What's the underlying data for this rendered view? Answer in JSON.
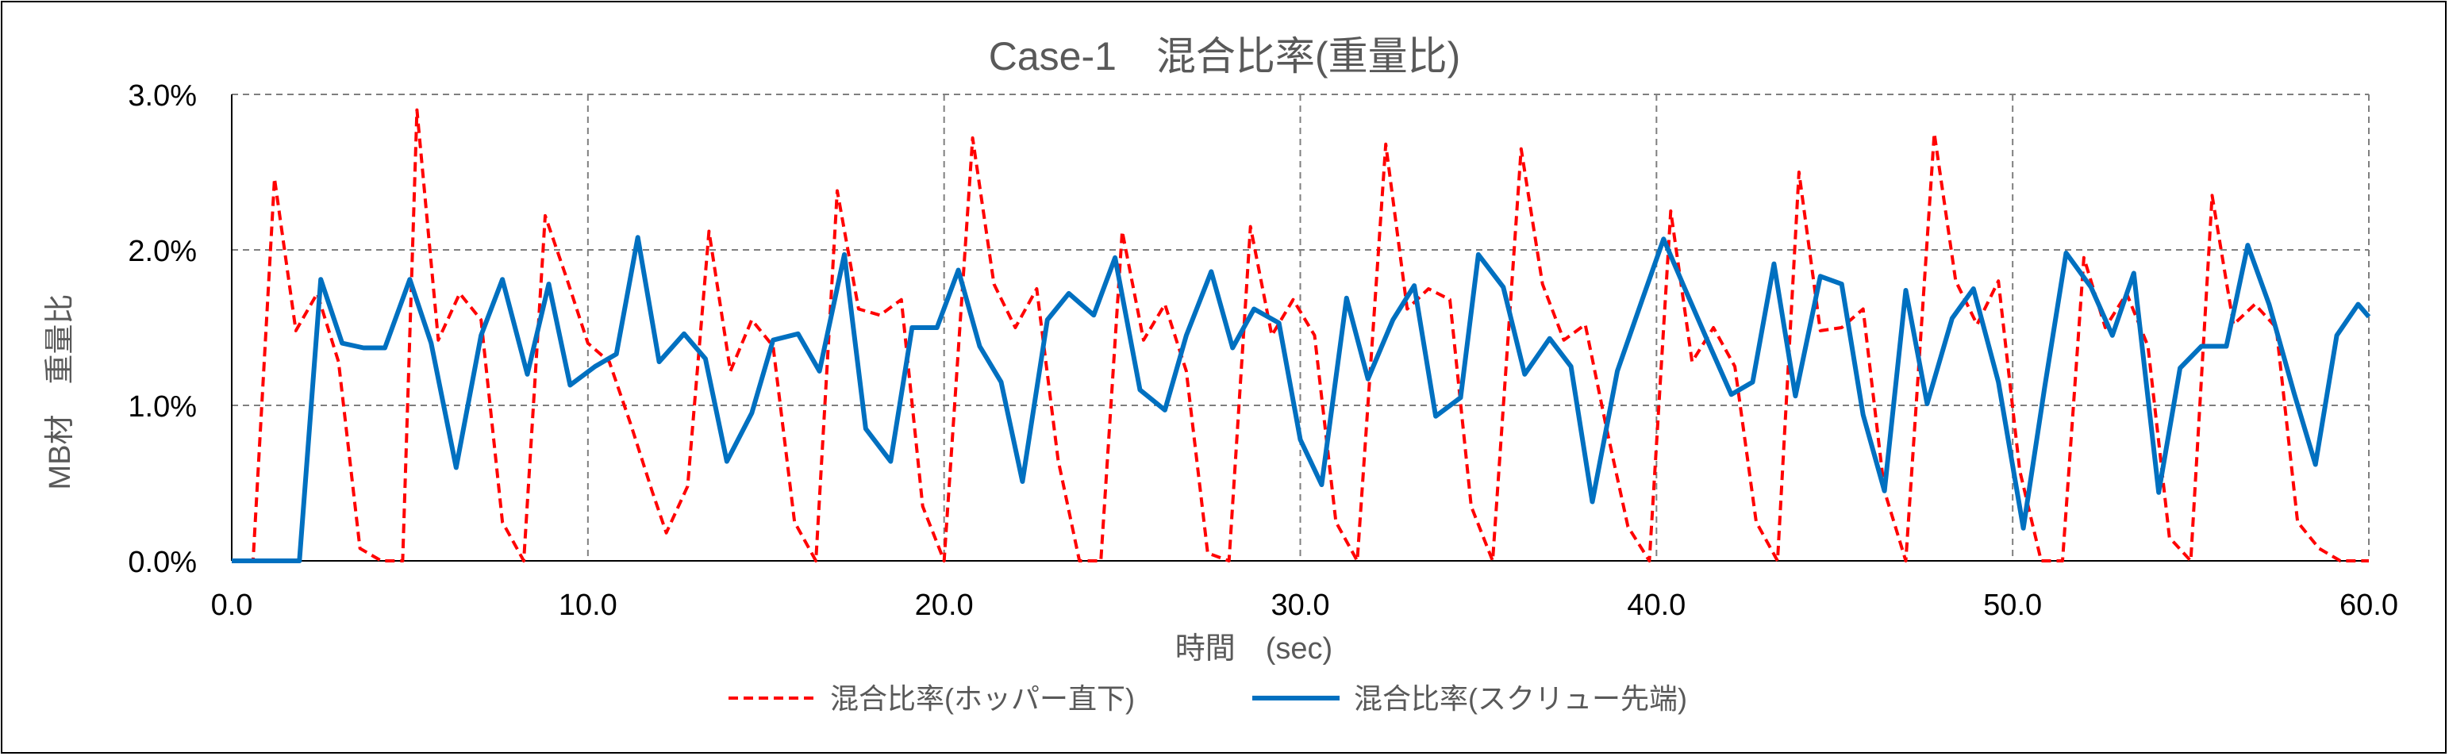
{
  "chart_data": {
    "type": "line",
    "title": "Case-1　混合比率(重量比)",
    "xlabel": "時間　(sec)",
    "ylabel": "MB材　重量比",
    "xlim": [
      0,
      60
    ],
    "ylim": [
      0,
      0.03
    ],
    "x_ticks": [
      "0.0",
      "10.0",
      "20.0",
      "30.0",
      "40.0",
      "50.0",
      "60.0"
    ],
    "y_ticks": [
      "0.0%",
      "1.0%",
      "2.0%",
      "3.0%"
    ],
    "grid": true,
    "legend_position": "bottom",
    "series": [
      {
        "name": "混合比率(ホッパー直下)",
        "color": "#ff0000",
        "style": "dashed",
        "points": [
          [
            0.0,
            0.0
          ],
          [
            0.6,
            0.0
          ],
          [
            1.2,
            0.0246
          ],
          [
            1.8,
            0.0148
          ],
          [
            2.4,
            0.0172
          ],
          [
            3.0,
            0.0128
          ],
          [
            3.6,
            0.0008
          ],
          [
            4.2,
            0.0
          ],
          [
            4.8,
            0.0
          ],
          [
            5.2,
            0.029
          ],
          [
            5.8,
            0.0142
          ],
          [
            6.4,
            0.0172
          ],
          [
            7.0,
            0.0155
          ],
          [
            7.6,
            0.0025
          ],
          [
            8.2,
            0.0
          ],
          [
            8.8,
            0.0222
          ],
          [
            9.4,
            0.0182
          ],
          [
            10.0,
            0.014
          ],
          [
            10.6,
            0.0128
          ],
          [
            11.2,
            0.0088
          ],
          [
            11.8,
            0.0045
          ],
          [
            12.2,
            0.0018
          ],
          [
            12.8,
            0.0048
          ],
          [
            13.4,
            0.0212
          ],
          [
            14.0,
            0.0122
          ],
          [
            14.6,
            0.0155
          ],
          [
            15.2,
            0.0138
          ],
          [
            15.8,
            0.0025
          ],
          [
            16.4,
            0.0
          ],
          [
            17.0,
            0.0238
          ],
          [
            17.6,
            0.0162
          ],
          [
            18.2,
            0.0158
          ],
          [
            18.8,
            0.0168
          ],
          [
            19.4,
            0.0035
          ],
          [
            20.0,
            0.0
          ],
          [
            20.8,
            0.0272
          ],
          [
            21.4,
            0.0178
          ],
          [
            22.0,
            0.015
          ],
          [
            22.6,
            0.0175
          ],
          [
            23.2,
            0.0065
          ],
          [
            23.8,
            0.0
          ],
          [
            24.4,
            0.0
          ],
          [
            25.0,
            0.0212
          ],
          [
            25.6,
            0.0142
          ],
          [
            26.2,
            0.0165
          ],
          [
            26.8,
            0.0122
          ],
          [
            27.4,
            0.0005
          ],
          [
            28.0,
            0.0
          ],
          [
            28.6,
            0.0215
          ],
          [
            29.2,
            0.0145
          ],
          [
            29.8,
            0.0168
          ],
          [
            30.4,
            0.0145
          ],
          [
            31.0,
            0.0025
          ],
          [
            31.6,
            0.0
          ],
          [
            32.4,
            0.0268
          ],
          [
            33.0,
            0.0162
          ],
          [
            33.6,
            0.0175
          ],
          [
            34.2,
            0.0168
          ],
          [
            34.8,
            0.0035
          ],
          [
            35.4,
            0.0
          ],
          [
            36.2,
            0.0265
          ],
          [
            36.8,
            0.0178
          ],
          [
            37.4,
            0.0142
          ],
          [
            38.0,
            0.0152
          ],
          [
            38.6,
            0.0085
          ],
          [
            39.2,
            0.0022
          ],
          [
            39.8,
            0.0
          ],
          [
            40.4,
            0.0225
          ],
          [
            41.0,
            0.0128
          ],
          [
            41.6,
            0.015
          ],
          [
            42.2,
            0.0125
          ],
          [
            42.8,
            0.0025
          ],
          [
            43.4,
            0.0
          ],
          [
            44.0,
            0.025
          ],
          [
            44.6,
            0.0148
          ],
          [
            45.2,
            0.015
          ],
          [
            45.8,
            0.0162
          ],
          [
            46.4,
            0.0045
          ],
          [
            47.0,
            0.0
          ],
          [
            47.8,
            0.0275
          ],
          [
            48.4,
            0.018
          ],
          [
            49.0,
            0.0152
          ],
          [
            49.6,
            0.018
          ],
          [
            50.2,
            0.0058
          ],
          [
            50.8,
            0.0
          ],
          [
            51.4,
            0.0
          ],
          [
            52.0,
            0.0195
          ],
          [
            52.6,
            0.015
          ],
          [
            53.2,
            0.0172
          ],
          [
            53.8,
            0.0138
          ],
          [
            54.4,
            0.0015
          ],
          [
            55.0,
            0.0
          ],
          [
            55.6,
            0.0235
          ],
          [
            56.2,
            0.0152
          ],
          [
            56.8,
            0.0165
          ],
          [
            57.4,
            0.015
          ],
          [
            58.0,
            0.0025
          ],
          [
            58.6,
            0.0008
          ],
          [
            59.2,
            0.0
          ],
          [
            60.0,
            0.0
          ]
        ]
      },
      {
        "name": "混合比率(スクリュー先端)",
        "color": "#0070c0",
        "style": "solid",
        "points": [
          [
            0.0,
            0.0
          ],
          [
            1.9,
            0.0
          ],
          [
            2.5,
            0.0181
          ],
          [
            3.1,
            0.014
          ],
          [
            3.7,
            0.0137
          ],
          [
            4.3,
            0.0137
          ],
          [
            5.0,
            0.0181
          ],
          [
            5.6,
            0.014
          ],
          [
            6.3,
            0.006
          ],
          [
            7.0,
            0.0145
          ],
          [
            7.6,
            0.0181
          ],
          [
            8.3,
            0.012
          ],
          [
            8.9,
            0.0178
          ],
          [
            9.5,
            0.0113
          ],
          [
            10.2,
            0.0125
          ],
          [
            10.8,
            0.0133
          ],
          [
            11.4,
            0.0208
          ],
          [
            12.0,
            0.0128
          ],
          [
            12.7,
            0.0146
          ],
          [
            13.3,
            0.013
          ],
          [
            13.9,
            0.0064
          ],
          [
            14.6,
            0.0095
          ],
          [
            15.2,
            0.0142
          ],
          [
            15.9,
            0.0146
          ],
          [
            16.5,
            0.0122
          ],
          [
            17.2,
            0.0197
          ],
          [
            17.8,
            0.0085
          ],
          [
            18.5,
            0.0064
          ],
          [
            19.1,
            0.015
          ],
          [
            19.8,
            0.015
          ],
          [
            20.4,
            0.0187
          ],
          [
            21.0,
            0.0138
          ],
          [
            21.6,
            0.0115
          ],
          [
            22.2,
            0.0051
          ],
          [
            22.9,
            0.0155
          ],
          [
            23.5,
            0.0172
          ],
          [
            24.2,
            0.0158
          ],
          [
            24.8,
            0.0195
          ],
          [
            25.5,
            0.011
          ],
          [
            26.2,
            0.0097
          ],
          [
            26.8,
            0.0145
          ],
          [
            27.5,
            0.0186
          ],
          [
            28.1,
            0.0137
          ],
          [
            28.7,
            0.0162
          ],
          [
            29.4,
            0.0153
          ],
          [
            30.0,
            0.0078
          ],
          [
            30.6,
            0.0049
          ],
          [
            31.3,
            0.0169
          ],
          [
            31.9,
            0.0117
          ],
          [
            32.6,
            0.0155
          ],
          [
            33.2,
            0.0177
          ],
          [
            33.8,
            0.0093
          ],
          [
            34.5,
            0.0105
          ],
          [
            35.0,
            0.0197
          ],
          [
            35.7,
            0.0176
          ],
          [
            36.3,
            0.012
          ],
          [
            37.0,
            0.0143
          ],
          [
            37.6,
            0.0125
          ],
          [
            38.2,
            0.0038
          ],
          [
            38.9,
            0.0122
          ],
          [
            39.6,
            0.0168
          ],
          [
            40.2,
            0.0207
          ],
          [
            40.8,
            0.0175
          ],
          [
            41.5,
            0.0138
          ],
          [
            42.1,
            0.0107
          ],
          [
            42.7,
            0.0115
          ],
          [
            43.3,
            0.0191
          ],
          [
            43.9,
            0.0106
          ],
          [
            44.6,
            0.0183
          ],
          [
            45.2,
            0.0178
          ],
          [
            45.8,
            0.0094
          ],
          [
            46.4,
            0.0045
          ],
          [
            47.0,
            0.0174
          ],
          [
            47.6,
            0.0101
          ],
          [
            48.3,
            0.0156
          ],
          [
            48.9,
            0.0175
          ],
          [
            49.6,
            0.0115
          ],
          [
            50.3,
            0.0021
          ],
          [
            50.9,
            0.0112
          ],
          [
            51.5,
            0.0198
          ],
          [
            52.2,
            0.0176
          ],
          [
            52.8,
            0.0145
          ],
          [
            53.4,
            0.0185
          ],
          [
            54.1,
            0.0044
          ],
          [
            54.7,
            0.0124
          ],
          [
            55.3,
            0.0138
          ],
          [
            56.0,
            0.0138
          ],
          [
            56.6,
            0.0203
          ],
          [
            57.2,
            0.0165
          ],
          [
            57.9,
            0.0108
          ],
          [
            58.5,
            0.0062
          ],
          [
            59.1,
            0.0145
          ],
          [
            59.7,
            0.0165
          ],
          [
            60.0,
            0.0157
          ]
        ]
      }
    ]
  }
}
